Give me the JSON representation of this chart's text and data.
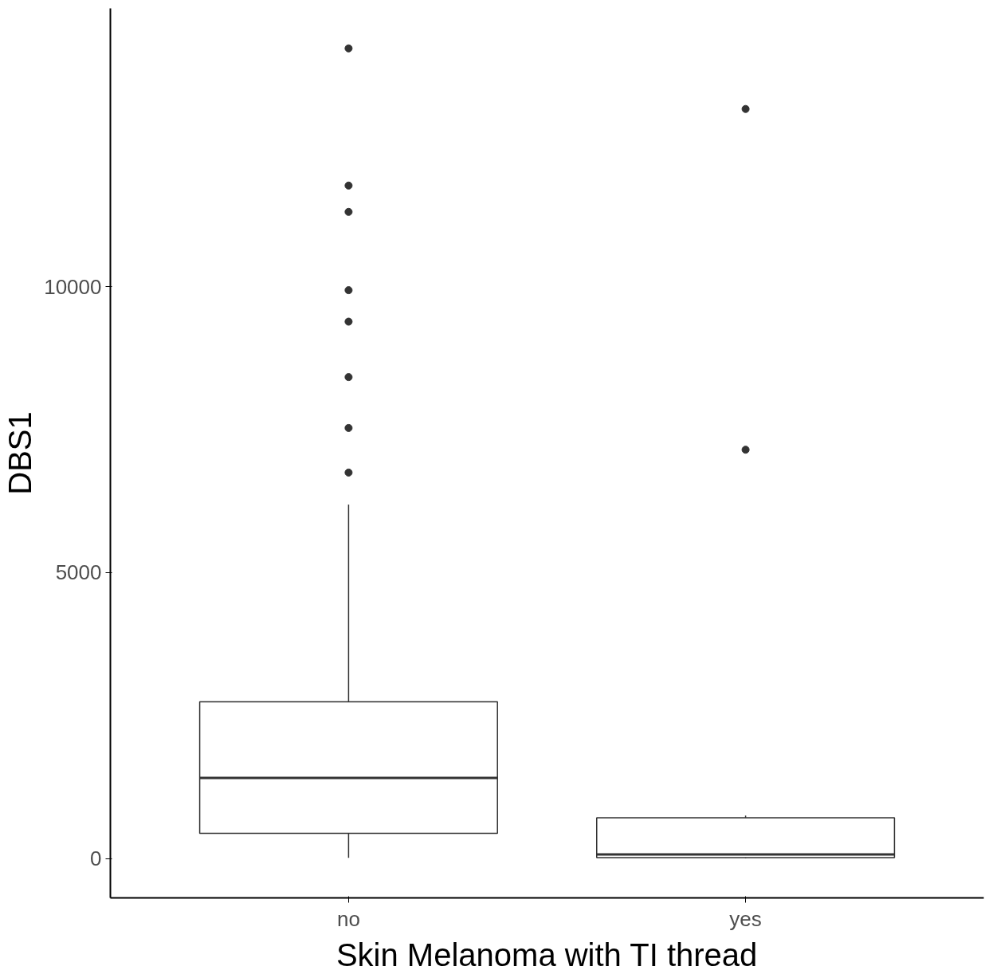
{
  "chart_data": {
    "type": "box",
    "xlabel": "Skin Melanoma with TI thread",
    "ylabel": "DBS1",
    "categories": [
      "no",
      "yes"
    ],
    "boxes": [
      {
        "low": 10,
        "q1": 440,
        "median": 1410,
        "q3": 2740,
        "high": 6190,
        "outliers": [
          14170,
          11770,
          11310,
          9940,
          9390,
          8420,
          7530,
          6750
        ]
      },
      {
        "low": 5,
        "q1": 15,
        "median": 70,
        "q3": 710,
        "high": 750,
        "outliers": [
          13110,
          7150
        ]
      }
    ],
    "color": "#333333",
    "ylim": [
      -690,
      14870
    ],
    "yticks": [
      0,
      5000,
      10000
    ],
    "grid": false,
    "marker": "circle"
  }
}
